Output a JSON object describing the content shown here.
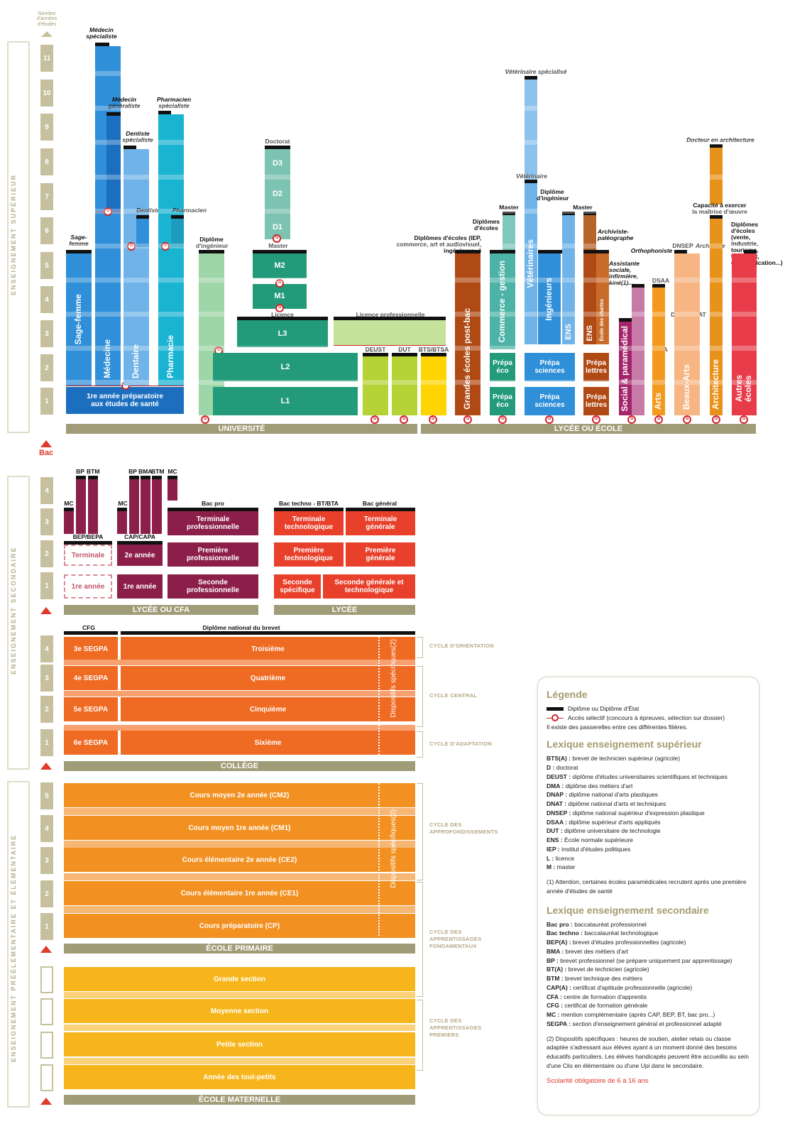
{
  "axis": {
    "title": "Nombre d'années d'études",
    "years_sup": [
      "11",
      "10",
      "9",
      "8",
      "7",
      "6",
      "5",
      "4",
      "3",
      "2",
      "1"
    ],
    "years_sec_lycee": [
      "4",
      "3",
      "2",
      "1"
    ],
    "years_college": [
      "4",
      "3",
      "2",
      "1"
    ],
    "years_primaire": [
      "5",
      "4",
      "3",
      "2",
      "1"
    ]
  },
  "sections": {
    "superieur": "ENSEIGNEMENT SUPÉRIEUR",
    "secondaire": "ENSEIGNEMENT SECONDAIRE",
    "elementaire": "ENSEIGNEMENT PRÉÉLÉMENTAIRE ET ÉLÉMENTAIRE"
  },
  "bac": "Bac",
  "sup": {
    "sante": {
      "medecin_spe": "Médecin spécialiste",
      "medecin_gen": "Médecin généraliste",
      "pharmacien_spe": "Pharmacien spécialiste",
      "dentiste_spe": "Dentiste spécialiste",
      "dentiste": "Dentiste",
      "pharmacien": "Pharmacien",
      "sage_femme_dip": "Sage-femme",
      "sage_femme": "Sage-femme",
      "medecine": "Médecine",
      "dentaire": "Dentaire",
      "pharmacie": "Pharmacie",
      "premiere_annee": "1re année préparatoire aux études de santé"
    },
    "univ": {
      "dip_ing": "Diplôme d'ingénieur",
      "doctorat": "Doctorat",
      "d3": "D3",
      "d2": "D2",
      "d1": "D1",
      "master": "Master",
      "m2": "M2",
      "m1": "M1",
      "licence": "Licence",
      "l3": "L3",
      "l2": "L2",
      "l1": "L1",
      "licence_pro": "Licence professionnelle",
      "deust": "DEUST",
      "dut": "DUT",
      "bts": "BTS/BTSA"
    },
    "ecoles": {
      "dip_ecoles": "Diplômes d'écoles (IEP, commerce, art et audiovisuel, ingénieurs...)",
      "grandes_ecoles": "Grandes écoles post-bac",
      "dip_ecoles2": "Diplômes d'écoles",
      "master": "Master",
      "commerce": "Commerce - gestion",
      "ens": "ENS",
      "prepa_eco": "Prépa éco",
      "veterinaire_spe": "Vétérinaire spécialisé",
      "veterinaire": "Vétérinaire",
      "veterinaires": "Vétérinaires",
      "dip_ing": "Diplôme d'ingénieur",
      "ingenieurs": "Ingénieurs",
      "ens2": "ENS",
      "prepa_sciences": "Prépa sciences",
      "master2": "Master",
      "archiviste": "Archiviste-paléographe",
      "ens3": "ENS",
      "ecole_chartes": "École des chartes",
      "prepa_lettres": "Prépa lettres",
      "orthophoniste": "Orthophoniste",
      "assistante": "Assistante sociale, infirmière, kiné(1)...",
      "social": "Social & paramédical",
      "dsaa": "DSAA",
      "dma": "DMA",
      "arts": "Arts",
      "dnsep": "DNSEP",
      "dnap": "DNAP/DNAT",
      "beaux_arts": "Beaux-Arts",
      "docteur_archi": "Docteur en architecture",
      "capacite": "Capacité à exercer la maîtrise d'œuvre",
      "architecte": "Architecte",
      "architecture": "Architecture",
      "dip_ecoles3": "Diplômes d'écoles (vente, industrie, tourisme, transport, communication...)",
      "autres": "Autres écoles"
    },
    "base_univ": "UNIVERSITÉ",
    "base_lycee": "LYCÉE OU ÉCOLE"
  },
  "sec": {
    "bp": "BP",
    "btm": "BTM",
    "bma": "BMA",
    "mc": "MC",
    "bep": "BEP/BEPA",
    "cap": "CAP/CAPA",
    "bacpro": "Bac pro",
    "terminale": "Terminale",
    "premiere_annee": "1re année",
    "deuxieme_annee": "2e année",
    "term_pro": "Terminale professionnelle",
    "prem_pro": "Première professionnelle",
    "sec_pro": "Seconde professionnelle",
    "bac_techno": "Bac techno - BT/BTA",
    "bac_general": "Bac général",
    "term_techno": "Terminale technologique",
    "term_gen": "Terminale générale",
    "prem_techno": "Première technologique",
    "prem_gen": "Première générale",
    "sec_spe": "Seconde spécifique",
    "sec_gen": "Seconde générale et technologique",
    "base_cfa": "LYCÉE OU CFA",
    "base_lycee": "LYCÉE"
  },
  "college": {
    "cfg": "CFG",
    "brevet": "Diplôme national du brevet",
    "s3": "3e SEGPA",
    "s4": "4e SEGPA",
    "s5": "5e SEGPA",
    "s6": "6e SEGPA",
    "troisieme": "Troisième",
    "quatrieme": "Quatrième",
    "cinquieme": "Cinquième",
    "sixieme": "Sixième",
    "dispositifs": "Dispositifs spécifiques(2)",
    "base": "COLLÈGE",
    "cycle_orientation": "CYCLE D'ORIENTATION",
    "cycle_central": "CYCLE CENTRAL",
    "cycle_adaptation": "CYCLE D'ADAPTATION"
  },
  "primaire": {
    "cm2": "Cours moyen 2e année (CM2)",
    "cm1": "Cours moyen 1re année (CM1)",
    "ce2": "Cours élémentaire 2e année (CE2)",
    "ce1": "Cours élémentaire 1re année (CE1)",
    "cp": "Cours préparatoire (CP)",
    "dispositifs": "Dispositifs spécifiques(2)",
    "base": "ÉCOLE PRIMAIRE",
    "cycle_approf": "CYCLE DES APPROFONDISSEMENTS",
    "cycle_fond": "CYCLE DES APPRENTISSAGES FONDAMENTAUX"
  },
  "maternelle": {
    "grande": "Grande section",
    "moyenne": "Moyenne section",
    "petite": "Petite section",
    "tout_petits": "Année des tout-petits",
    "base": "ÉCOLE MATERNELLE",
    "cycle_premiers": "CYCLE DES APPRENTISSAGES PREMIERS"
  },
  "legend": {
    "title": "Légende",
    "diplome": "Diplôme ou Diplôme d'État",
    "acces": "Accès sélectif (concours à épreuves, sélection sur dossier)",
    "passerelles": "Il existe des passerelles entre ces différentes filières.",
    "lex_sup_title": "Lexique enseignement supérieur",
    "lex_sup": [
      [
        "BTS(A) :",
        "brevet de technicien supérieur (agricole)"
      ],
      [
        "D :",
        "doctorat"
      ],
      [
        "DEUST :",
        "diplôme d'études universitaires scientifiques et techniques"
      ],
      [
        "DMA :",
        "diplôme des métiers d'art"
      ],
      [
        "DNAP :",
        "diplôme national d'arts plastiques"
      ],
      [
        "DNAT :",
        "diplôme national d'arts et techniques"
      ],
      [
        "DNSEP :",
        "diplôme national supérieur d'expression plastique"
      ],
      [
        "DSAA :",
        "diplôme supérieur d'arts appliqués"
      ],
      [
        "DUT :",
        "diplôme universitaire de technologie"
      ],
      [
        "ENS :",
        "École normale supérieure"
      ],
      [
        "IEP :",
        "institut d'études politiques"
      ],
      [
        "L :",
        "licence"
      ],
      [
        "M :",
        "master"
      ]
    ],
    "note1": "(1) Attention, certaines écoles paramédicales recrutent après une première année d'études de santé",
    "lex_sec_title": "Lexique enseignement secondaire",
    "lex_sec": [
      [
        "Bac pro :",
        "baccalauréat professionnel"
      ],
      [
        "Bac techno :",
        "baccalauréat technologique"
      ],
      [
        "BEP(A) :",
        "brevet d'études professionnelles (agricole)"
      ],
      [
        "BMA :",
        "brevet des métiers d'art"
      ],
      [
        "BP :",
        "brevet professionnel (se prépare uniquement par apprentissage)"
      ],
      [
        "BT(A) :",
        "brevet de technicien (agricole)"
      ],
      [
        "BTM :",
        "brevet technique des métiers"
      ],
      [
        "CAP(A) :",
        "certificat d'aptitude professionnelle (agricole)"
      ],
      [
        "CFA :",
        "centre de formation d'apprentis"
      ],
      [
        "CFG :",
        "certificat de formation générale"
      ],
      [
        "MC :",
        "mention complémentaire (après CAP, BEP, BT, bac pro...)"
      ],
      [
        "SEGPA :",
        "section d'enseignement général et professionnel adapté"
      ]
    ],
    "note2": "(2) Dispositifs spécifiques : heures de soutien, atelier relais ou classe adaptée s'adressant aux élèves ayant à un moment donné des besoins éducatifs particuliers. Les élèves handicapés peuvent être accueillis au sein d'une Clis en élémentaire ou d'une Upi dans le secondaire.",
    "scolarite": "Scolarité obligatoire de 6 à 16 ans"
  },
  "colors": {
    "sante_dark": "#1c6fbf",
    "sante": "#2f8fd8",
    "sante_light": "#6fb3e8",
    "pharma": "#1ab3d1",
    "univ_green": "#239b7a",
    "univ_light": "#9fd6a8",
    "lime": "#b5d334",
    "yellow": "#ffd400",
    "brown": "#b04a14",
    "teal": "#4eb3a7",
    "purple_social": "#a3246a",
    "orange_arts": "#f39a1e",
    "peach": "#f7b583",
    "archi": "#e8921c",
    "red_autres": "#e83c4a",
    "lycee_pro": "#8c1f4a",
    "lycee_gen": "#e8402a",
    "college": "#ef6a22",
    "primaire": "#f29122",
    "maternelle": "#f7b51c",
    "base": "#a19c78",
    "accent": "#e0392b"
  }
}
